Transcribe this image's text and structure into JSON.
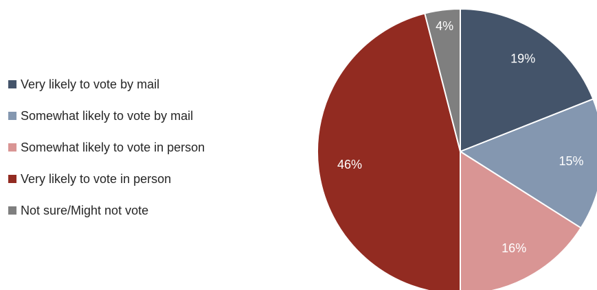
{
  "chart_data": {
    "type": "pie",
    "categories": [
      "Very likely to vote by mail",
      "Somewhat likely to vote by mail",
      "Somewhat likely to vote in person",
      "Very likely to vote in person",
      "Not sure/Might not vote"
    ],
    "values": [
      19,
      15,
      16,
      46,
      4
    ],
    "value_labels": [
      "19%",
      "15%",
      "16%",
      "46%",
      "4%"
    ],
    "colors": [
      "#44546a",
      "#8497b0",
      "#d99594",
      "#922b21",
      "#7f7f7f"
    ],
    "legend_position": "left",
    "start_angle": "12 o'clock",
    "direction": "clockwise"
  }
}
